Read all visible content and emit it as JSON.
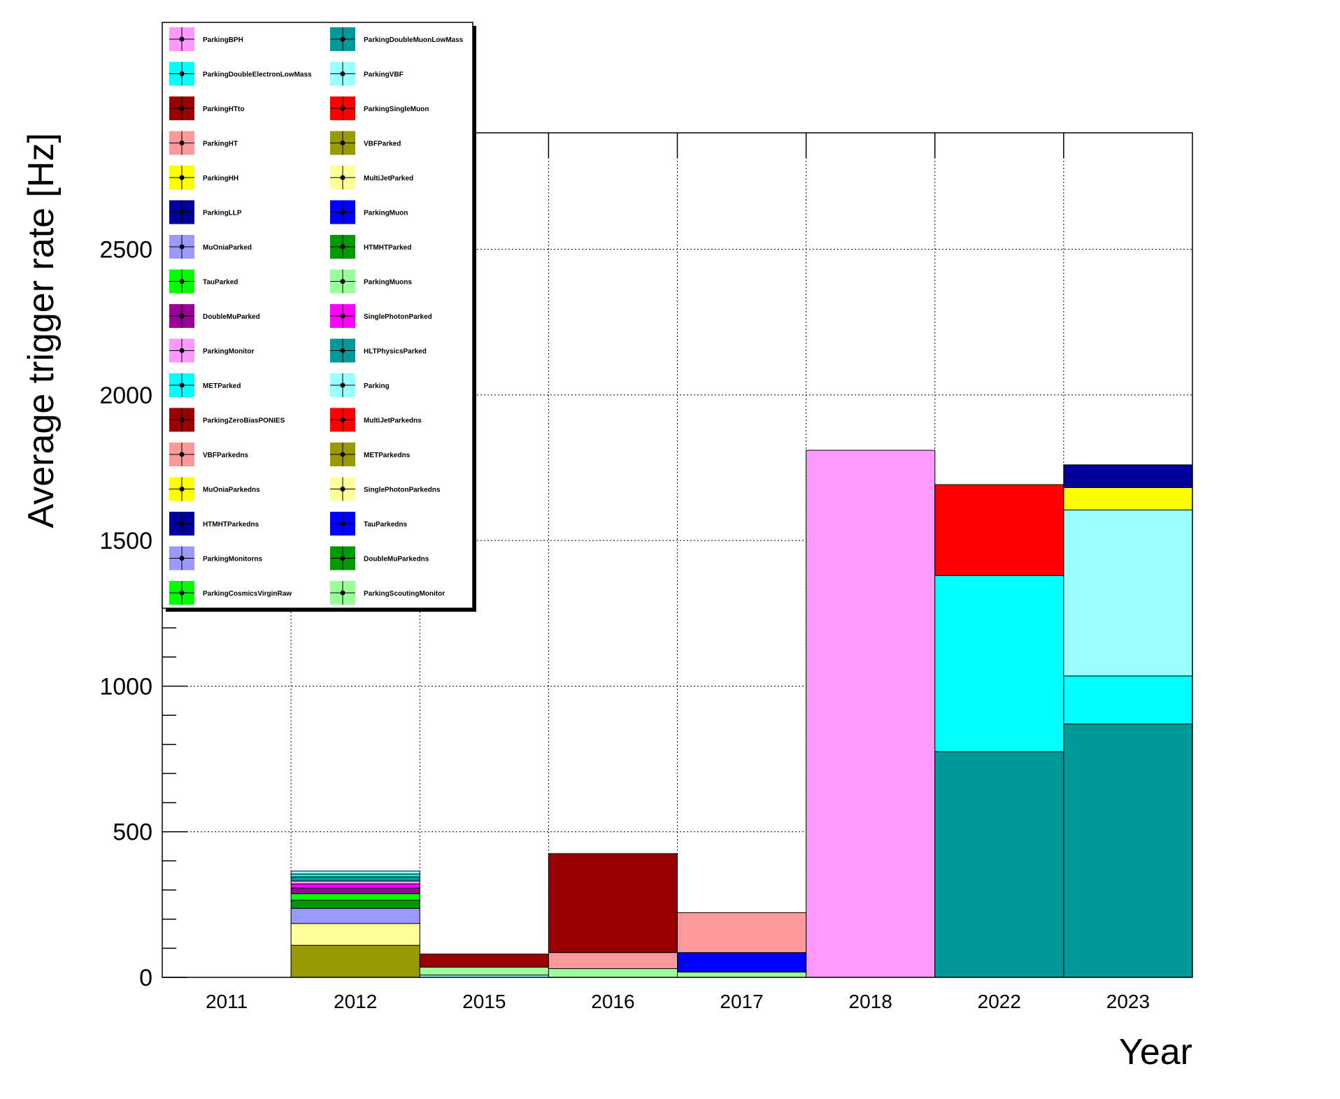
{
  "chart_data": {
    "type": "bar",
    "stacked": true,
    "xlabel": "Year",
    "ylabel": "Average trigger rate [Hz]",
    "categories": [
      "2011",
      "2012",
      "2015",
      "2016",
      "2017",
      "2018",
      "2022",
      "2023"
    ],
    "ylim": [
      0,
      2900
    ],
    "yticks": [
      0,
      500,
      1000,
      1500,
      2000,
      2500
    ],
    "grid": true,
    "legend_position": "top-left",
    "series": [
      {
        "name": "ParkingBPH",
        "color": "#ff99ff",
        "values": [
          0,
          0,
          0,
          0,
          0,
          1810,
          0,
          0
        ]
      },
      {
        "name": "ParkingDoubleMuonLowMass",
        "color": "#009999",
        "values": [
          0,
          0,
          0,
          0,
          0,
          0,
          775,
          870
        ]
      },
      {
        "name": "ParkingDoubleElectronLowMass",
        "color": "#00ffff",
        "values": [
          0,
          0,
          0,
          0,
          0,
          0,
          605,
          165
        ]
      },
      {
        "name": "ParkingVBF",
        "color": "#99ffff",
        "values": [
          0,
          0,
          0,
          0,
          0,
          0,
          0,
          570
        ]
      },
      {
        "name": "ParkingHTto",
        "color": "#990000",
        "values": [
          0,
          0,
          0,
          0,
          0,
          0,
          0,
          0
        ]
      },
      {
        "name": "ParkingSingleMuon",
        "color": "#ff0000",
        "values": [
          0,
          0,
          0,
          0,
          0,
          0,
          312,
          0
        ]
      },
      {
        "name": "ParkingHT",
        "color": "#ff9999",
        "values": [
          0,
          0,
          0,
          0,
          0,
          0,
          0,
          0
        ]
      },
      {
        "name": "VBFParked",
        "color": "#999900",
        "values": [
          0,
          110,
          0,
          0,
          0,
          0,
          0,
          0
        ]
      },
      {
        "name": "ParkingHH",
        "color": "#ffff00",
        "values": [
          0,
          0,
          0,
          0,
          0,
          0,
          0,
          77
        ]
      },
      {
        "name": "MultiJetParked",
        "color": "#ffff99",
        "values": [
          0,
          75,
          0,
          0,
          0,
          0,
          0,
          0
        ]
      },
      {
        "name": "ParkingLLP",
        "color": "#000099",
        "values": [
          0,
          0,
          0,
          0,
          0,
          0,
          0,
          78
        ]
      },
      {
        "name": "ParkingMuon",
        "color": "#0000ff",
        "values": [
          0,
          0,
          0,
          0,
          0,
          0,
          0,
          0
        ]
      },
      {
        "name": "MuOniaParked",
        "color": "#9999ff",
        "values": [
          0,
          52,
          0,
          0,
          0,
          0,
          0,
          0
        ]
      },
      {
        "name": "HTMHTParked",
        "color": "#009900",
        "values": [
          0,
          28,
          0,
          0,
          0,
          0,
          0,
          0
        ]
      },
      {
        "name": "TauParked",
        "color": "#00ff00",
        "values": [
          0,
          22,
          0,
          0,
          0,
          0,
          0,
          0
        ]
      },
      {
        "name": "ParkingMuons",
        "color": "#99ff99",
        "values": [
          0,
          0,
          0,
          0,
          0,
          0,
          0,
          0
        ]
      },
      {
        "name": "DoubleMuParked",
        "color": "#990099",
        "values": [
          0,
          20,
          0,
          0,
          0,
          0,
          0,
          0
        ]
      },
      {
        "name": "SinglePhotonParked",
        "color": "#ff00ff",
        "values": [
          0,
          14,
          0,
          0,
          0,
          0,
          0,
          0
        ]
      },
      {
        "name": "ParkingMonitor",
        "color": "#ff99ff",
        "values": [
          0,
          10,
          0,
          0,
          0,
          0,
          0,
          0
        ]
      },
      {
        "name": "HLTPhysicsParked",
        "color": "#009999",
        "values": [
          0,
          14,
          0,
          0,
          0,
          0,
          0,
          0
        ]
      },
      {
        "name": "METParked",
        "color": "#00ffff",
        "values": [
          0,
          10,
          0,
          0,
          0,
          0,
          0,
          0
        ]
      },
      {
        "name": "Parking",
        "color": "#99ffff",
        "values": [
          0,
          10,
          0,
          0,
          0,
          0,
          0,
          0
        ]
      },
      {
        "name": "ParkingZeroBiasPONIES",
        "color": "#990000",
        "values": [
          0,
          0,
          0,
          0,
          0,
          0,
          0,
          0
        ]
      },
      {
        "name": "MultiJetParkedns",
        "color": "#ff0000",
        "values": [
          0,
          0,
          0,
          0,
          0,
          0,
          0,
          0
        ]
      },
      {
        "name": "VBFParkedns",
        "color": "#ff9999",
        "values": [
          0,
          0,
          0,
          0,
          0,
          0,
          0,
          0
        ]
      },
      {
        "name": "METParkedns",
        "color": "#999900",
        "values": [
          0,
          0,
          0,
          0,
          0,
          0,
          0,
          0
        ]
      },
      {
        "name": "MuOniaParkedns",
        "color": "#ffff00",
        "values": [
          0,
          0,
          0,
          0,
          0,
          0,
          0,
          0
        ]
      },
      {
        "name": "SinglePhotonParkedns",
        "color": "#ffff99",
        "values": [
          0,
          0,
          0,
          0,
          0,
          0,
          0,
          0
        ]
      },
      {
        "name": "HTMHTParkedns",
        "color": "#000099",
        "values": [
          0,
          0,
          0,
          0,
          0,
          0,
          0,
          0
        ]
      },
      {
        "name": "TauParkedns",
        "color": "#0000ff",
        "values": [
          0,
          0,
          0,
          0,
          0,
          0,
          0,
          0
        ]
      },
      {
        "name": "ParkingMonitorns",
        "color": "#9999ff",
        "values": [
          0,
          0,
          0,
          0,
          0,
          0,
          0,
          0
        ]
      },
      {
        "name": "DoubleMuParkedns",
        "color": "#009900",
        "values": [
          0,
          0,
          0,
          0,
          0,
          0,
          0,
          0
        ]
      },
      {
        "name": "ParkingCosmicsVirginRaw",
        "color": "#00ff00",
        "values": [
          0,
          0,
          0,
          0,
          0,
          0,
          0,
          0
        ]
      },
      {
        "name": "ParkingScoutingMonitor",
        "color": "#99ff99",
        "values": [
          0,
          0,
          0,
          0,
          0,
          0,
          0,
          0
        ]
      }
    ],
    "extra_segments": [
      {
        "category": "2015",
        "bottom": 0,
        "top": 8,
        "color": "#99ffff"
      },
      {
        "category": "2015",
        "bottom": 8,
        "top": 35,
        "color": "#99ff99"
      },
      {
        "category": "2015",
        "bottom": 35,
        "top": 80,
        "color": "#990000"
      },
      {
        "category": "2016",
        "bottom": 0,
        "top": 30,
        "color": "#99ff99"
      },
      {
        "category": "2016",
        "bottom": 30,
        "top": 85,
        "color": "#ff9999"
      },
      {
        "category": "2016",
        "bottom": 85,
        "top": 425,
        "color": "#990000"
      },
      {
        "category": "2017",
        "bottom": 0,
        "top": 18,
        "color": "#99ff99"
      },
      {
        "category": "2017",
        "bottom": 18,
        "top": 85,
        "color": "#0000ff"
      },
      {
        "category": "2017",
        "bottom": 85,
        "top": 222,
        "color": "#ff9999"
      }
    ]
  }
}
